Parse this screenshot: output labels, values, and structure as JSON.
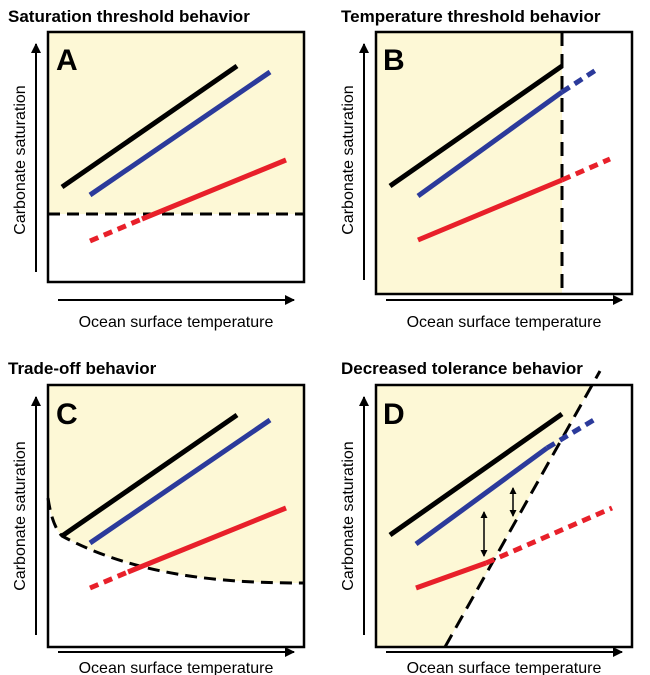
{
  "colors": {
    "shade": "#fdf8d6",
    "black_line": "#000000",
    "blue_line": "#2b3a9b",
    "red_line": "#e8202a",
    "frame": "#000000"
  },
  "panels": [
    {
      "letter": "A",
      "title": "Saturation threshold behavior",
      "xlabel": "Ocean surface temperature",
      "ylabel": "Carbonate saturation"
    },
    {
      "letter": "B",
      "title": "Temperature threshold behavior",
      "xlabel": "Ocean surface temperature",
      "ylabel": "Carbonate saturation"
    },
    {
      "letter": "C",
      "title": "Trade-off behavior",
      "xlabel": "Ocean surface temperature",
      "ylabel": "Carbonate saturation"
    },
    {
      "letter": "D",
      "title": "Decreased tolerance behavior",
      "xlabel": "Ocean surface temperature",
      "ylabel": "Carbonate saturation"
    }
  ]
}
